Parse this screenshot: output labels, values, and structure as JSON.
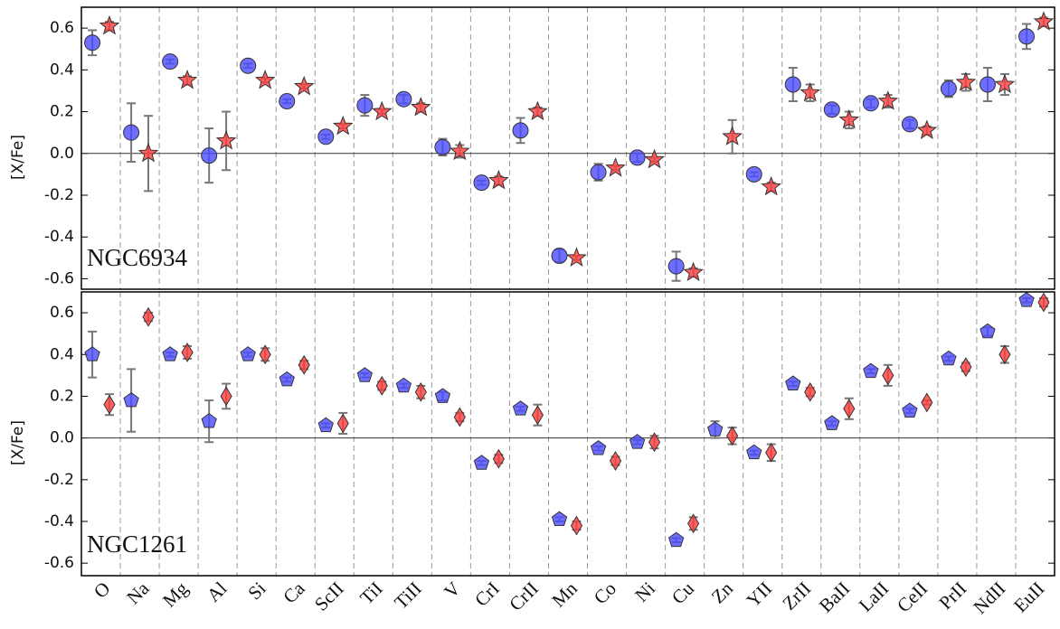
{
  "chart_data": [
    {
      "type": "scatter",
      "label": "NGC6934",
      "y_label": "[X/Fe]",
      "ylim": [
        -0.65,
        0.7
      ],
      "yticks": [
        -0.6,
        -0.4,
        -0.2,
        {
          "value": 0,
          "label": "0.0"
        },
        0.2,
        0.4,
        0.6
      ],
      "series": [
        {
          "color": "#4a4aff",
          "marker": "circle",
          "values": [
            0.53,
            0.1,
            0.44,
            -0.01,
            0.42,
            0.25,
            0.08,
            0.23,
            0.26,
            0.03,
            -0.14,
            0.11,
            -0.49,
            -0.09,
            -0.02,
            -0.54,
            null,
            -0.1,
            0.33,
            0.21,
            0.24,
            0.14,
            0.31,
            0.33,
            0.56
          ],
          "errors": [
            0.06,
            0.14,
            0.01,
            0.13,
            0.01,
            0.01,
            0.01,
            0.05,
            0.02,
            0.04,
            0.01,
            0.06,
            0.03,
            0.04,
            0.02,
            0.07,
            null,
            0.01,
            0.08,
            0.02,
            0.02,
            0.02,
            0.04,
            0.08,
            0.06
          ]
        },
        {
          "color": "#ff3b3b",
          "marker": "star",
          "values": [
            0.61,
            0.0,
            0.35,
            0.06,
            0.35,
            0.32,
            0.13,
            0.2,
            0.22,
            0.01,
            -0.13,
            0.2,
            -0.5,
            -0.07,
            -0.03,
            -0.57,
            0.08,
            -0.16,
            0.29,
            0.16,
            0.25,
            0.11,
            0.34,
            0.33,
            0.63
          ],
          "errors": [
            0.02,
            0.18,
            0.02,
            0.14,
            0.01,
            0.01,
            0.01,
            0.01,
            0.02,
            0.03,
            0.02,
            0.02,
            0.01,
            0.01,
            0.01,
            0.02,
            0.08,
            0.02,
            0.04,
            0.04,
            0.03,
            0.02,
            0.04,
            0.05,
            0.02
          ]
        }
      ]
    },
    {
      "type": "scatter",
      "label": "NGC1261",
      "y_label": "[X/Fe]",
      "ylim": [
        -0.66,
        0.7
      ],
      "yticks": [
        -0.6,
        -0.4,
        -0.2,
        {
          "value": 0,
          "label": "0.0"
        },
        0.2,
        0.4,
        0.6
      ],
      "categories": [
        "O",
        "Na",
        "Mg",
        "Al",
        "Si",
        "Ca",
        "ScII",
        "TiI",
        "TiII",
        "V",
        "CrI",
        "CrII",
        "Mn",
        "Co",
        "Ni",
        "Cu",
        "Zn",
        "YII",
        "ZrII",
        "BaII",
        "LaII",
        "CeII",
        "PrII",
        "NdII",
        "EuII"
      ],
      "series": [
        {
          "color": "#4a4aff",
          "marker": "pentagon",
          "values": [
            0.4,
            0.18,
            0.4,
            0.08,
            0.4,
            0.28,
            0.06,
            0.3,
            0.25,
            0.2,
            -0.12,
            0.14,
            -0.39,
            -0.05,
            -0.02,
            -0.49,
            0.04,
            -0.07,
            0.26,
            0.07,
            0.32,
            0.13,
            0.38,
            0.51,
            0.66
          ],
          "errors": [
            0.11,
            0.15,
            0.01,
            0.1,
            0.01,
            0.01,
            0.01,
            0.01,
            0.01,
            0.02,
            0.01,
            0.01,
            0.01,
            0.01,
            0.01,
            0.01,
            0.04,
            0.01,
            0.01,
            0.01,
            0.01,
            0.01,
            0.01,
            0.02,
            0.01
          ]
        },
        {
          "color": "#ff3b3b",
          "marker": "diamond",
          "values": [
            0.16,
            0.58,
            0.41,
            0.2,
            0.4,
            0.35,
            0.07,
            0.25,
            0.22,
            0.1,
            -0.1,
            0.11,
            -0.42,
            -0.11,
            -0.02,
            -0.41,
            0.01,
            -0.07,
            0.22,
            0.14,
            0.3,
            0.17,
            0.34,
            0.4,
            0.65
          ],
          "errors": [
            0.05,
            0.02,
            0.03,
            0.06,
            0.03,
            0.02,
            0.05,
            0.02,
            0.03,
            0.02,
            0.02,
            0.05,
            0.02,
            0.02,
            0.03,
            0.03,
            0.04,
            0.04,
            0.02,
            0.05,
            0.05,
            0.01,
            0.02,
            0.04,
            0.02
          ]
        }
      ]
    }
  ]
}
